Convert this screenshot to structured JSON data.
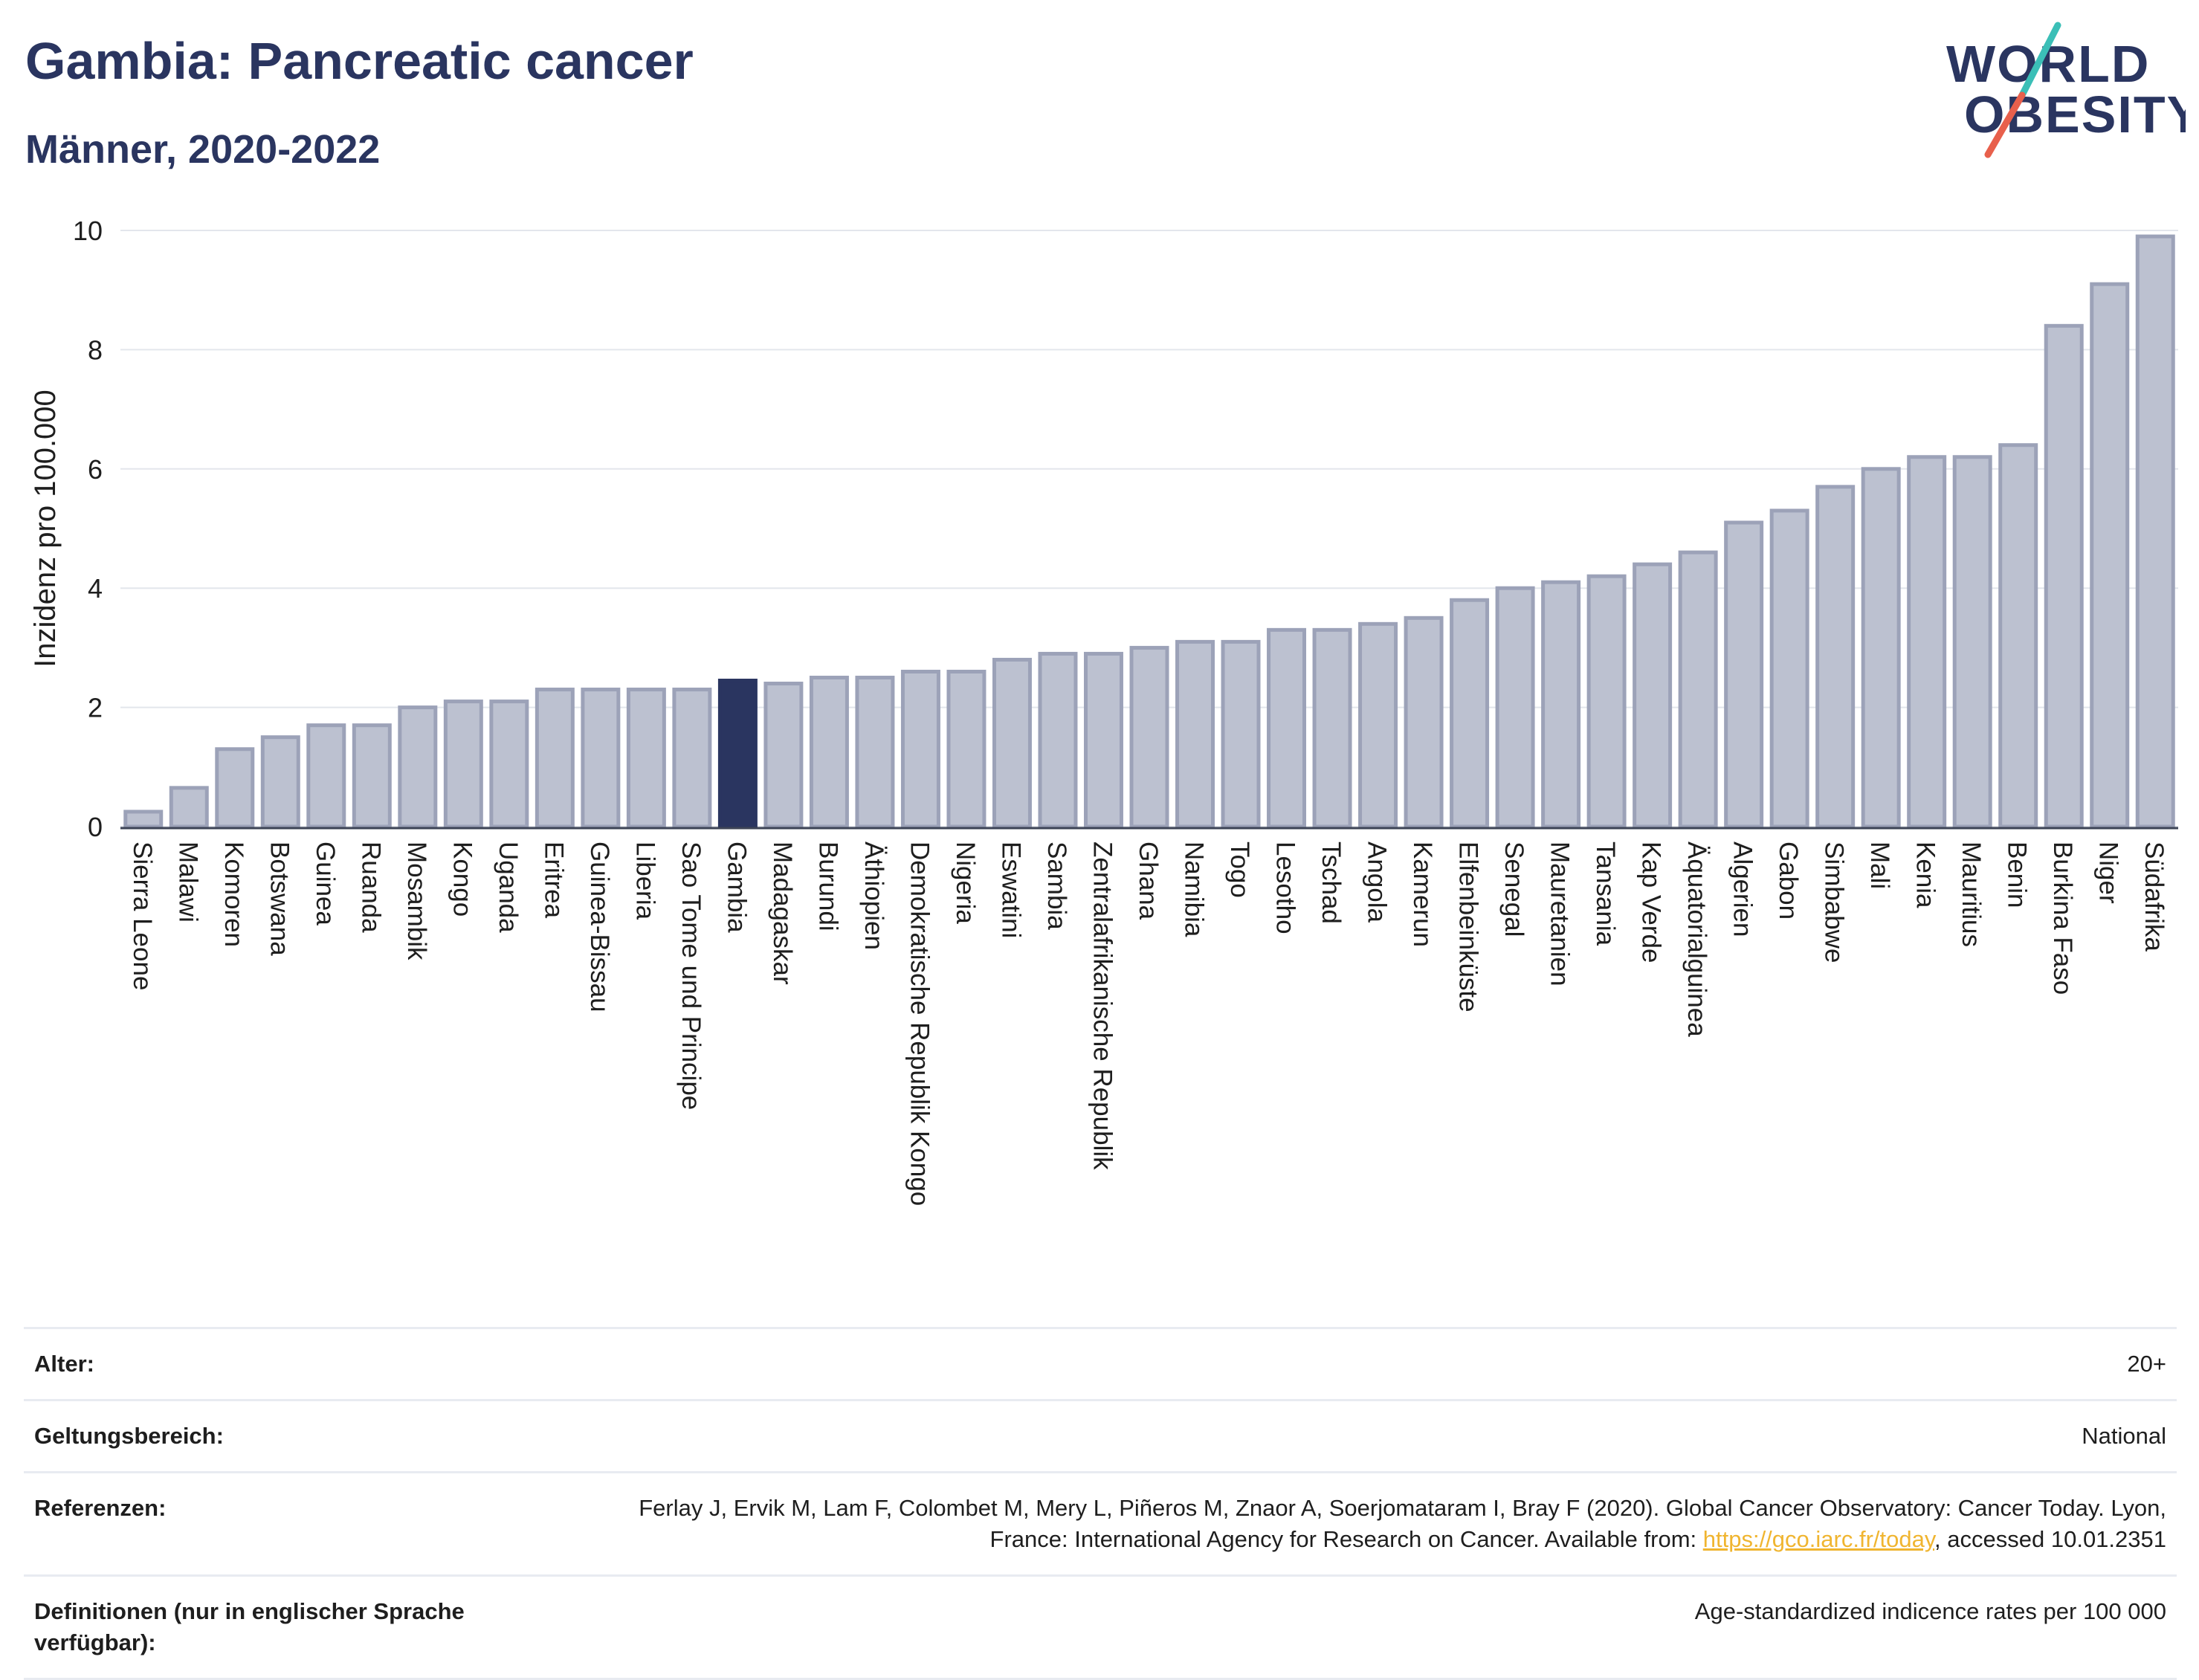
{
  "header": {
    "title": "Gambia: Pancreatic cancer",
    "subtitle": "Männer, 2020-2022"
  },
  "logo": {
    "line1": "WORLD",
    "line2": "OBESITY",
    "stripe_colors": [
      "#3bbfb7",
      "#e8604c"
    ]
  },
  "colors": {
    "bar": "#bcc1d0",
    "bar_stroke": "#9ca2b8",
    "highlight": "#2a3560",
    "grid": "#e3e6ec",
    "axis": "#3d4456"
  },
  "chart_data": {
    "type": "bar",
    "ylabel": "Inzidenz pro 100.000",
    "ylim": [
      0,
      10
    ],
    "yticks": [
      0,
      2,
      4,
      6,
      8,
      10
    ],
    "highlight": "Gambia",
    "categories": [
      "Sierra Leone",
      "Malawi",
      "Komoren",
      "Botswana",
      "Guinea",
      "Ruanda",
      "Mosambik",
      "Kongo",
      "Uganda",
      "Eritrea",
      "Guinea-Bissau",
      "Liberia",
      "Sao Tome und Principe",
      "Gambia",
      "Madagaskar",
      "Burundi",
      "Äthiopien",
      "Demokratische Republik Kongo",
      "Nigeria",
      "Eswatini",
      "Sambia",
      "Zentralafrikanische Republik",
      "Ghana",
      "Namibia",
      "Togo",
      "Lesotho",
      "Tschad",
      "Angola",
      "Kamerun",
      "Elfenbeinküste",
      "Senegal",
      "Mauretanien",
      "Tansania",
      "Kap Verde",
      "Äquatorialguinea",
      "Algerien",
      "Gabon",
      "Simbabwe",
      "Mali",
      "Kenia",
      "Mauritius",
      "Benin",
      "Burkina Faso",
      "Niger",
      "Südafrika"
    ],
    "values": [
      0.25,
      0.65,
      1.3,
      1.5,
      1.7,
      1.7,
      2.0,
      2.1,
      2.1,
      2.3,
      2.3,
      2.3,
      2.3,
      2.45,
      2.4,
      2.5,
      2.5,
      2.6,
      2.6,
      2.8,
      2.9,
      2.9,
      3.0,
      3.1,
      3.1,
      3.3,
      3.3,
      3.4,
      3.5,
      3.8,
      4.0,
      4.1,
      4.2,
      4.4,
      4.6,
      5.1,
      5.3,
      5.7,
      6.0,
      6.2,
      6.2,
      6.4,
      8.4,
      9.1,
      9.9
    ]
  },
  "info": {
    "age_label": "Alter:",
    "age_value": "20+",
    "scope_label": "Geltungsbereich:",
    "scope_value": "National",
    "ref_label": "Referenzen:",
    "ref_text_1": "Ferlay J, Ervik M, Lam F, Colombet M, Mery L, Piñeros M, Znaor A, Soerjomataram I, Bray F (2020). Global Cancer Observatory: Cancer Today. Lyon, France: International Agency for Research on Cancer. Available from: ",
    "ref_link": "https://gco.iarc.fr/today",
    "ref_text_2": ", accessed 10.01.2351",
    "def_label": "Definitionen (nur in englischer Sprache verfügbar):",
    "def_value": "Age-standardized indicence rates per 100 000"
  }
}
